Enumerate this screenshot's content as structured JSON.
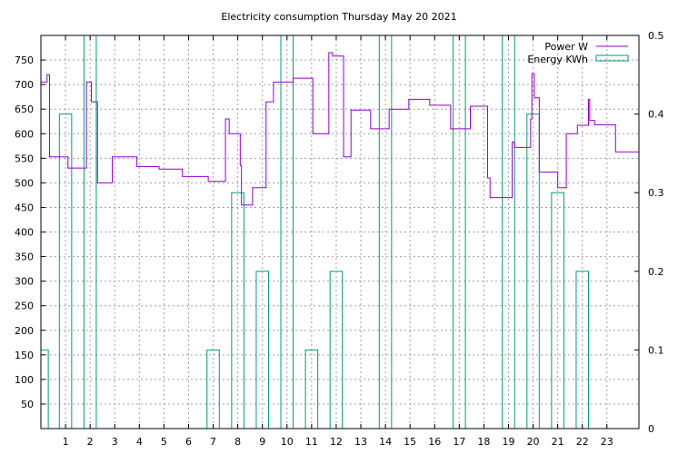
{
  "chart_data": {
    "type": "line",
    "title": "Electricity consumption Thursday May 20 2021",
    "xlabel": "",
    "ylabel": "",
    "y2label": "",
    "xlim": [
      0,
      24.3
    ],
    "ylim": [
      0,
      800
    ],
    "y2lim": [
      0,
      0.5
    ],
    "xticks": [
      1,
      2,
      3,
      4,
      5,
      6,
      7,
      8,
      9,
      10,
      11,
      12,
      13,
      14,
      15,
      16,
      17,
      18,
      19,
      20,
      21,
      22,
      23
    ],
    "yticks": [
      50,
      100,
      150,
      200,
      250,
      300,
      350,
      400,
      450,
      500,
      550,
      600,
      650,
      700,
      750
    ],
    "y2ticks": [
      0,
      0.1,
      0.2,
      0.3,
      0.4,
      0.5
    ],
    "y2tick_labels": [
      "0",
      "0.1",
      "0.2",
      "0.3",
      "0.4",
      "0.5"
    ],
    "grid": true,
    "legend_position": "top-right",
    "series": [
      {
        "name": "Power W",
        "axis": "left",
        "style": "steps",
        "color": "#9400d3",
        "points": [
          [
            0.0,
            705
          ],
          [
            0.25,
            720
          ],
          [
            0.35,
            553
          ],
          [
            1.1,
            530
          ],
          [
            1.85,
            705
          ],
          [
            2.05,
            665
          ],
          [
            2.3,
            635
          ],
          [
            2.3,
            500
          ],
          [
            2.9,
            553
          ],
          [
            3.9,
            533
          ],
          [
            4.8,
            528
          ],
          [
            5.75,
            513
          ],
          [
            6.8,
            503
          ],
          [
            7.5,
            630
          ],
          [
            7.65,
            600
          ],
          [
            8.1,
            535
          ],
          [
            8.15,
            455
          ],
          [
            8.6,
            490
          ],
          [
            9.15,
            665
          ],
          [
            9.45,
            705
          ],
          [
            10.25,
            713
          ],
          [
            11.05,
            600
          ],
          [
            11.7,
            765
          ],
          [
            11.85,
            758
          ],
          [
            12.3,
            553
          ],
          [
            12.6,
            648
          ],
          [
            13.4,
            610
          ],
          [
            14.15,
            650
          ],
          [
            14.95,
            670
          ],
          [
            15.8,
            658
          ],
          [
            16.65,
            610
          ],
          [
            17.45,
            656
          ],
          [
            18.15,
            510
          ],
          [
            18.25,
            470
          ],
          [
            19.15,
            583
          ],
          [
            19.25,
            572
          ],
          [
            19.9,
            630
          ],
          [
            19.95,
            722
          ],
          [
            20.05,
            673
          ],
          [
            20.25,
            522
          ],
          [
            21.0,
            490
          ],
          [
            21.35,
            600
          ],
          [
            21.8,
            617
          ],
          [
            22.25,
            670
          ],
          [
            22.3,
            627
          ],
          [
            22.5,
            618
          ],
          [
            23.35,
            563
          ],
          [
            24.3,
            563
          ]
        ]
      },
      {
        "name": "Energy KWh",
        "axis": "right",
        "style": "boxes",
        "color": "#009e73",
        "bars": [
          {
            "x0": 0.0,
            "x1": 0.3,
            "value": 0.1
          },
          {
            "x0": 0.75,
            "x1": 1.25,
            "value": 0.4
          },
          {
            "x0": 1.75,
            "x1": 2.25,
            "value": 0.5
          },
          {
            "x0": 6.75,
            "x1": 7.25,
            "value": 0.1
          },
          {
            "x0": 7.75,
            "x1": 8.25,
            "value": 0.3
          },
          {
            "x0": 8.75,
            "x1": 9.25,
            "value": 0.2
          },
          {
            "x0": 9.75,
            "x1": 10.25,
            "value": 0.5
          },
          {
            "x0": 10.75,
            "x1": 11.25,
            "value": 0.1
          },
          {
            "x0": 11.75,
            "x1": 12.25,
            "value": 0.2
          },
          {
            "x0": 13.75,
            "x1": 14.25,
            "value": 0.5
          },
          {
            "x0": 16.75,
            "x1": 17.25,
            "value": 0.5
          },
          {
            "x0": 18.75,
            "x1": 19.25,
            "value": 0.5
          },
          {
            "x0": 19.75,
            "x1": 20.25,
            "value": 0.4
          },
          {
            "x0": 20.75,
            "x1": 21.25,
            "value": 0.3
          },
          {
            "x0": 21.75,
            "x1": 22.25,
            "value": 0.2
          }
        ]
      }
    ]
  }
}
